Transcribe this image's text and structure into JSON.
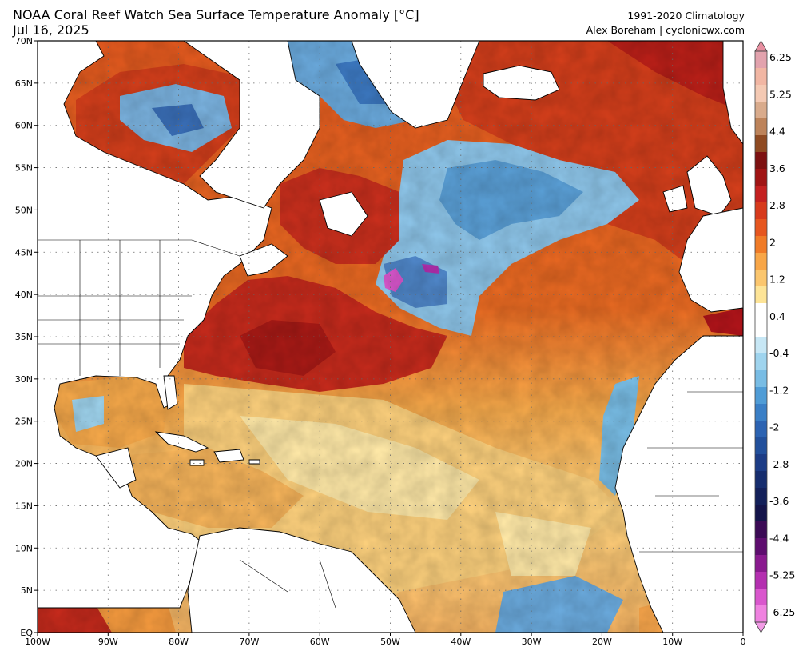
{
  "header": {
    "title": "NOAA Coral Reef Watch Sea Surface Temperature Anomaly [°C]",
    "date": "Jul 16, 2025",
    "climatology": "1991-2020 Climatology",
    "credit": "Alex Boreham | cyclonicwx.com"
  },
  "axes": {
    "lat_labels": [
      "70N",
      "65N",
      "60N",
      "55N",
      "50N",
      "45N",
      "40N",
      "35N",
      "30N",
      "25N",
      "20N",
      "15N",
      "10N",
      "5N",
      "EQ"
    ],
    "lon_labels": [
      "100W",
      "90W",
      "80W",
      "70W",
      "60W",
      "50W",
      "40W",
      "30W",
      "20W",
      "10W",
      "0"
    ]
  },
  "colorbar": {
    "labels": [
      "6.25",
      "5.25",
      "4.4",
      "3.6",
      "2.8",
      "2",
      "1.2",
      "0.4",
      "-0.4",
      "-1.2",
      "-2",
      "-2.8",
      "-3.6",
      "-4.4",
      "-5.25",
      "-6.25"
    ],
    "colors": [
      "#e2a2ad",
      "#f1b6a3",
      "#f4c9b3",
      "#d9ab8c",
      "#bd835a",
      "#8f4a22",
      "#7d1111",
      "#a01414",
      "#c42020",
      "#d73a1c",
      "#e6561f",
      "#f07b27",
      "#f8a647",
      "#fbc66e",
      "#fde497",
      "#ffffff",
      "#ffffff",
      "#c7e7f5",
      "#9fd4ee",
      "#78bce4",
      "#4f9cd6",
      "#3a7fc6",
      "#2c63b2",
      "#22509c",
      "#1c3c86",
      "#162d6e",
      "#13205a",
      "#14144a",
      "#3b0a55",
      "#5e0d6f",
      "#8a1a8f",
      "#b42fb0",
      "#d957cd",
      "#ef82e0"
    ]
  }
}
